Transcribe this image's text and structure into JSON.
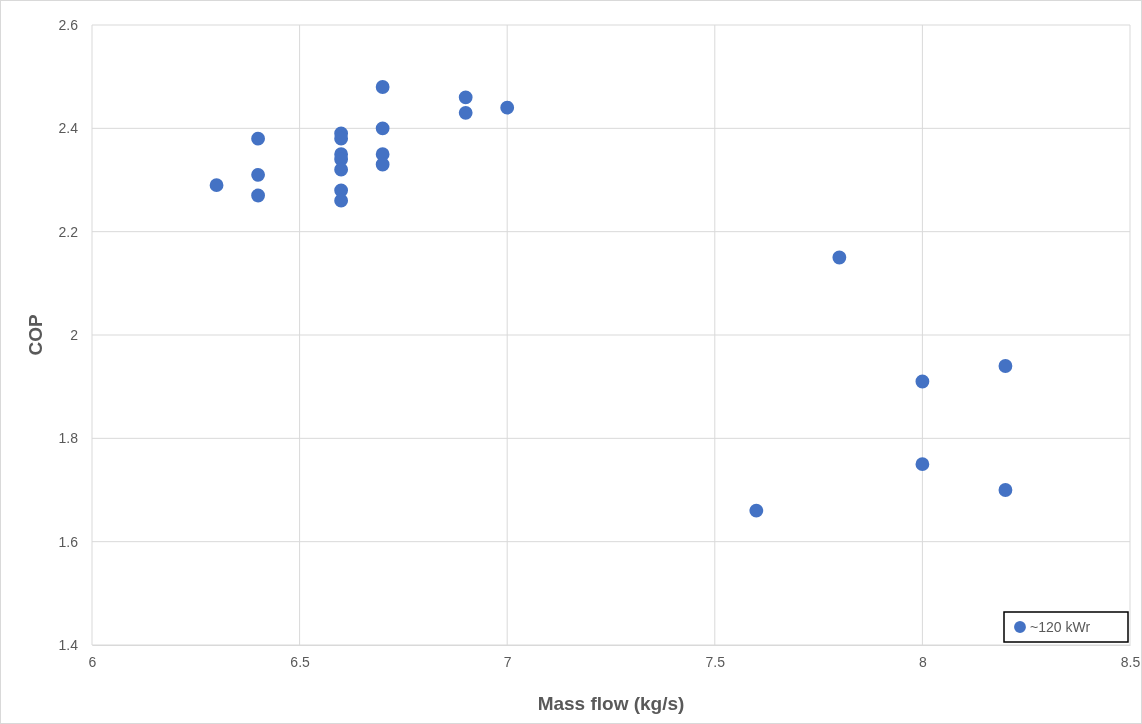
{
  "chart_data": {
    "type": "scatter",
    "xlabel": "Mass flow (kg/s)",
    "ylabel": "COP",
    "x": [
      6.3,
      6.4,
      6.4,
      6.4,
      6.6,
      6.6,
      6.6,
      6.6,
      6.6,
      6.6,
      6.6,
      6.7,
      6.7,
      6.7,
      6.7,
      6.9,
      6.9,
      7.0,
      7.8,
      7.6,
      8.0,
      8.0,
      8.2,
      8.2
    ],
    "series": [
      {
        "name": "~120 kWr",
        "color": "#4472c4",
        "values": [
          2.29,
          2.38,
          2.31,
          2.27,
          2.39,
          2.38,
          2.35,
          2.34,
          2.32,
          2.28,
          2.26,
          2.48,
          2.4,
          2.35,
          2.33,
          2.46,
          2.43,
          2.44,
          2.15,
          1.66,
          1.91,
          1.75,
          1.94,
          1.7
        ]
      }
    ],
    "xlim": [
      6,
      8.5
    ],
    "xticks": [
      6,
      6.5,
      7,
      7.5,
      8,
      8.5
    ],
    "ylim": [
      1.4,
      2.6
    ],
    "yticks": [
      1.4,
      1.6,
      1.8,
      2,
      2.2,
      2.4,
      2.6
    ],
    "grid": true,
    "legend": "bottom right",
    "marker": "circle"
  }
}
